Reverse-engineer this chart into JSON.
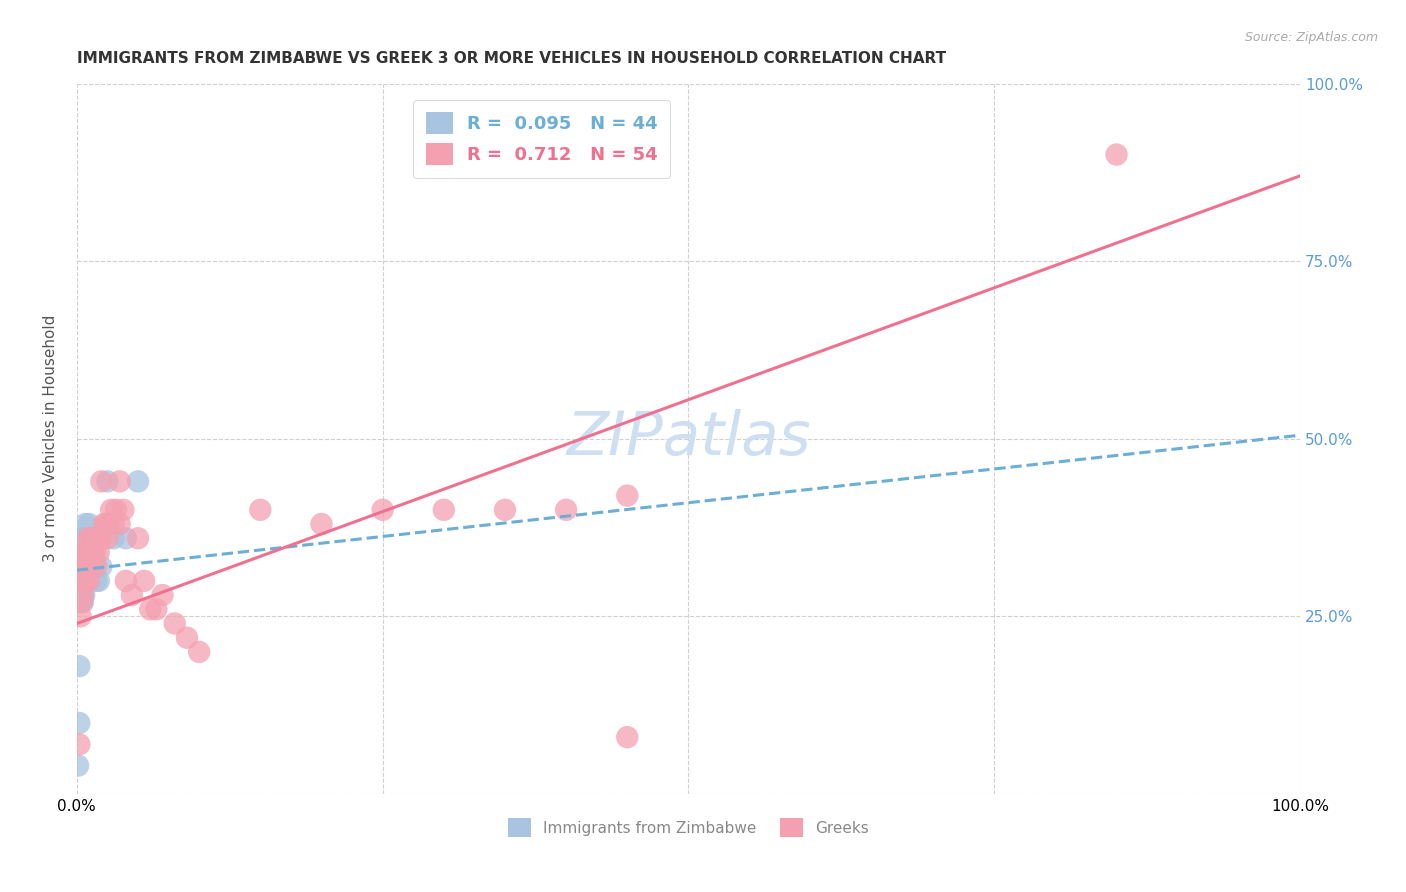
{
  "title": "IMMIGRANTS FROM ZIMBABWE VS GREEK 3 OR MORE VEHICLES IN HOUSEHOLD CORRELATION CHART",
  "source": "Source: ZipAtlas.com",
  "ylabel": "3 or more Vehicles in Household",
  "xlim": [
    0,
    1
  ],
  "ylim": [
    0,
    1
  ],
  "x_ticks": [
    0,
    0.25,
    0.5,
    0.75,
    1.0
  ],
  "y_ticks": [
    0,
    0.25,
    0.5,
    0.75,
    1.0
  ],
  "x_tick_labels": [
    "0.0%",
    "",
    "",
    "",
    "100.0%"
  ],
  "y_tick_labels_right": [
    "",
    "25.0%",
    "50.0%",
    "75.0%",
    "100.0%"
  ],
  "legend_r_values": [
    "0.095",
    "0.712"
  ],
  "legend_n_values": [
    "44",
    "54"
  ],
  "blue_line_color": "#6baed6",
  "pink_line_color": "#f07090",
  "blue_scatter_color": "#a8c4e0",
  "pink_scatter_color": "#f4a0b0",
  "watermark": "ZIPatlas",
  "blue_scatter_x": [
    0.001,
    0.002,
    0.002,
    0.003,
    0.003,
    0.003,
    0.003,
    0.003,
    0.004,
    0.004,
    0.004,
    0.004,
    0.005,
    0.005,
    0.005,
    0.005,
    0.005,
    0.005,
    0.006,
    0.006,
    0.006,
    0.006,
    0.007,
    0.007,
    0.007,
    0.007,
    0.008,
    0.008,
    0.009,
    0.009,
    0.009,
    0.01,
    0.01,
    0.011,
    0.012,
    0.013,
    0.014,
    0.016,
    0.018,
    0.02,
    0.025,
    0.03,
    0.04,
    0.05
  ],
  "blue_scatter_y": [
    0.04,
    0.1,
    0.18,
    0.27,
    0.28,
    0.3,
    0.32,
    0.34,
    0.3,
    0.32,
    0.34,
    0.36,
    0.27,
    0.28,
    0.3,
    0.32,
    0.34,
    0.36,
    0.28,
    0.3,
    0.32,
    0.34,
    0.3,
    0.32,
    0.34,
    0.38,
    0.32,
    0.36,
    0.32,
    0.34,
    0.36,
    0.34,
    0.38,
    0.36,
    0.32,
    0.34,
    0.32,
    0.3,
    0.3,
    0.32,
    0.44,
    0.36,
    0.36,
    0.44
  ],
  "pink_scatter_x": [
    0.002,
    0.003,
    0.004,
    0.004,
    0.005,
    0.005,
    0.006,
    0.006,
    0.007,
    0.007,
    0.008,
    0.009,
    0.009,
    0.01,
    0.01,
    0.011,
    0.012,
    0.013,
    0.014,
    0.015,
    0.016,
    0.017,
    0.018,
    0.02,
    0.022,
    0.024,
    0.025,
    0.026,
    0.028,
    0.03,
    0.032,
    0.035,
    0.038,
    0.04,
    0.045,
    0.05,
    0.055,
    0.06,
    0.065,
    0.07,
    0.08,
    0.09,
    0.1,
    0.15,
    0.2,
    0.25,
    0.3,
    0.35,
    0.4,
    0.45,
    0.02,
    0.035,
    0.45,
    0.85
  ],
  "pink_scatter_y": [
    0.07,
    0.25,
    0.27,
    0.3,
    0.28,
    0.32,
    0.3,
    0.34,
    0.3,
    0.34,
    0.32,
    0.32,
    0.36,
    0.3,
    0.34,
    0.36,
    0.32,
    0.34,
    0.36,
    0.34,
    0.32,
    0.36,
    0.34,
    0.36,
    0.38,
    0.38,
    0.36,
    0.38,
    0.4,
    0.38,
    0.4,
    0.38,
    0.4,
    0.3,
    0.28,
    0.36,
    0.3,
    0.26,
    0.26,
    0.28,
    0.24,
    0.22,
    0.2,
    0.4,
    0.38,
    0.4,
    0.4,
    0.4,
    0.4,
    0.42,
    0.44,
    0.44,
    0.08,
    0.9
  ],
  "blue_line_x": [
    0.0,
    1.0
  ],
  "blue_line_y": [
    0.315,
    0.505
  ],
  "pink_line_x": [
    0.0,
    1.0
  ],
  "pink_line_y": [
    0.24,
    0.87
  ],
  "background_color": "#ffffff",
  "grid_color": "#d0d0d0",
  "title_fontsize": 11,
  "axis_label_fontsize": 11,
  "tick_fontsize": 11,
  "watermark_fontsize": 44,
  "watermark_color": "#cddff0",
  "right_tick_color": "#5b9bd5",
  "title_color": "#333333",
  "source_color": "#aaaaaa"
}
